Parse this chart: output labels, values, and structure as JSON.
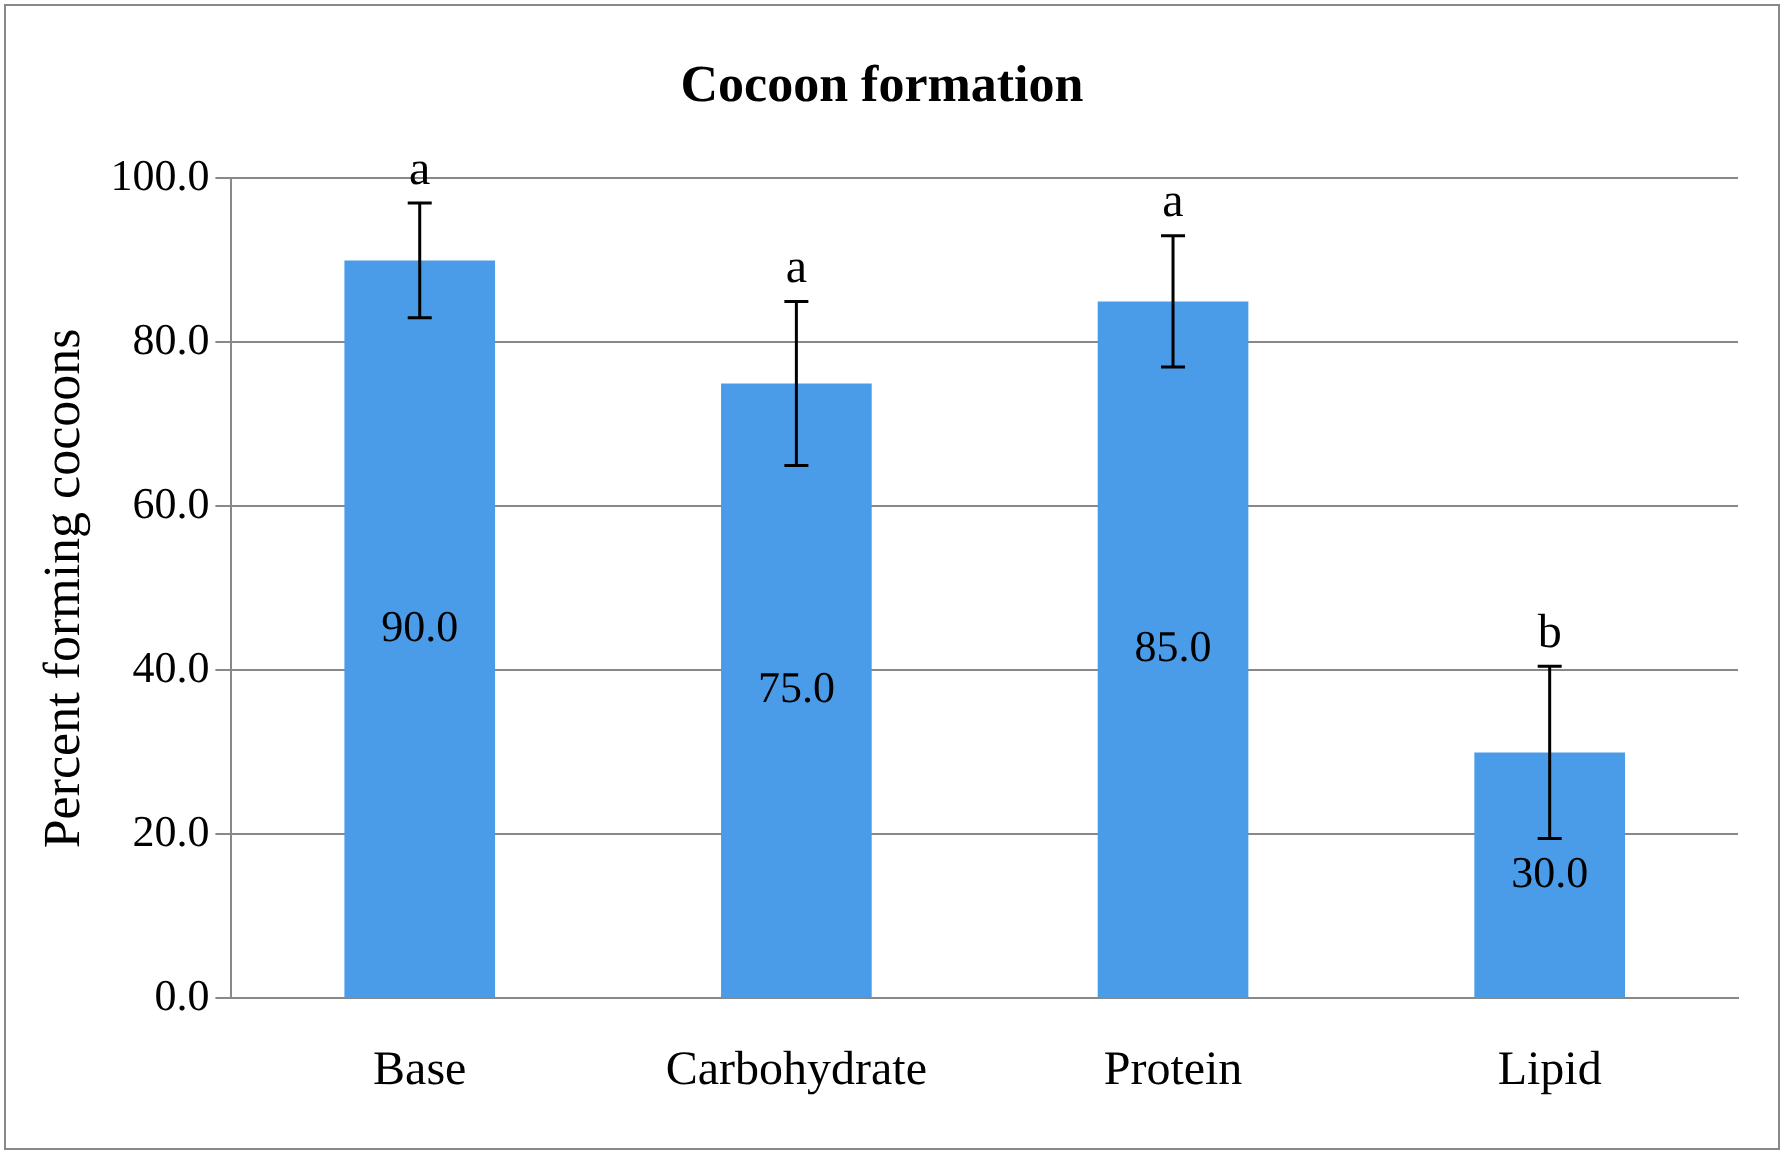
{
  "chart_data": {
    "type": "bar",
    "title": "Cocoon formation",
    "ylabel": "Percent forming cocoons",
    "categories": [
      "Base",
      "Carbohydrate",
      "Protein",
      "Lipid"
    ],
    "values": [
      90,
      75,
      85,
      30
    ],
    "value_labels": [
      "90.0",
      "75.0",
      "85.0",
      "30.0"
    ],
    "errors": [
      7,
      10,
      8,
      10.5
    ],
    "color": "#4a9be8",
    "ylim": [
      0,
      100
    ],
    "yticks": [
      {
        "value": 0,
        "label": "0.0"
      },
      {
        "value": 20,
        "label": "20.0"
      },
      {
        "value": 40,
        "label": "40.0"
      },
      {
        "value": 60,
        "label": "60.0"
      },
      {
        "value": 80,
        "label": "80.0"
      },
      {
        "value": 100,
        "label": "100.0"
      }
    ],
    "grid": "y",
    "legend": false,
    "annotations": [
      "a",
      "a",
      "a",
      "b"
    ]
  }
}
